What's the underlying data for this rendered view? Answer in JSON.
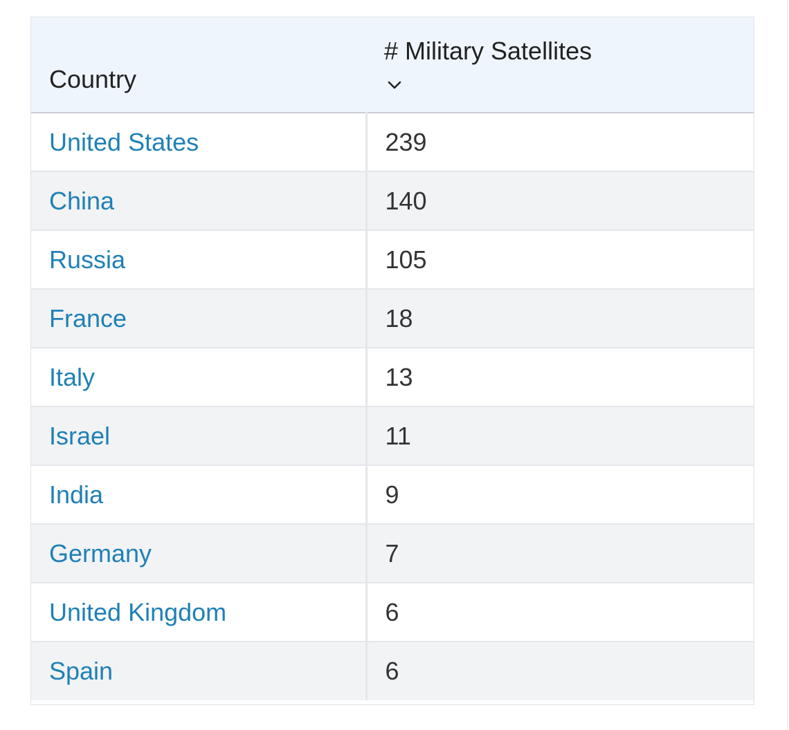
{
  "table": {
    "headers": {
      "country": "Country",
      "satellites": "# Military Satellites",
      "sort_icon": "chevron-down-icon"
    },
    "rows": [
      {
        "country": "United States",
        "satellites": "239"
      },
      {
        "country": "China",
        "satellites": "140"
      },
      {
        "country": "Russia",
        "satellites": "105"
      },
      {
        "country": "France",
        "satellites": "18"
      },
      {
        "country": "Italy",
        "satellites": "13"
      },
      {
        "country": "Israel",
        "satellites": "11"
      },
      {
        "country": "India",
        "satellites": "9"
      },
      {
        "country": "Germany",
        "satellites": "7"
      },
      {
        "country": "United Kingdom",
        "satellites": "6"
      },
      {
        "country": "Spain",
        "satellites": "6"
      }
    ]
  },
  "colors": {
    "link": "#1f80b6",
    "header_bg": "#eef5fd",
    "stripe_bg": "#f2f3f5",
    "text": "#333333"
  }
}
